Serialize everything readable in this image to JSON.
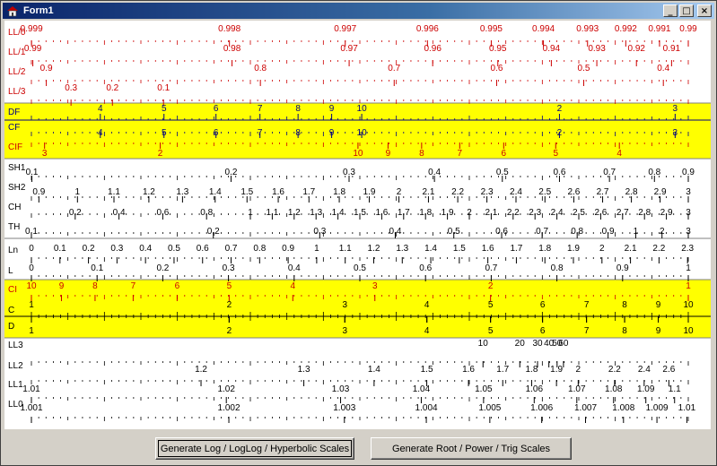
{
  "window": {
    "title": "Form1",
    "icon": "app-icon"
  },
  "titlebar_buttons": [
    {
      "name": "minimize-button",
      "glyph": "_"
    },
    {
      "name": "maximize-button",
      "glyph": "□"
    },
    {
      "name": "close-button",
      "glyph": "×"
    }
  ],
  "buttons": {
    "log_label": "Generate Log / LogLog / Hyperbolic Scales",
    "root_label": "Generate Root / Power / Trig Scales"
  },
  "colors": {
    "highlight": "#ffff00",
    "red_scale": "#cc0000",
    "navy_scale": "#000080",
    "black_scale": "#000000"
  },
  "scales": [
    {
      "name": "LL/0",
      "color": "red",
      "band": "top",
      "labels": [
        "0.999",
        "0.998",
        "0.997",
        "0.996",
        "0.995",
        "0.994",
        "0.993",
        "0.992",
        "0.991",
        "0.99"
      ]
    },
    {
      "name": "LL/1",
      "color": "red",
      "band": "top",
      "labels": [
        "0.99",
        "0.98",
        "0.97",
        "0.96",
        "0.95",
        "0.94",
        "0.93",
        "0.92",
        "0.91"
      ]
    },
    {
      "name": "LL/2",
      "color": "red",
      "band": "top",
      "labels": [
        "0.9",
        "0.8",
        "0.7",
        "0.6",
        "0.5",
        "0.4"
      ]
    },
    {
      "name": "LL/3",
      "color": "red",
      "band": "top",
      "labels": [
        "0.3",
        "0.2",
        "0.1"
      ]
    },
    {
      "name": "DF",
      "color": "navy",
      "band": "yellow",
      "labels": [
        "4",
        "5",
        "6",
        "7",
        "8",
        "9",
        "10",
        "2",
        "3"
      ]
    },
    {
      "name": "CF",
      "color": "navy",
      "band": "yellow",
      "labels": [
        "4",
        "5",
        "6",
        "7",
        "8",
        "9",
        "10",
        "2",
        "3"
      ]
    },
    {
      "name": "CIF",
      "color": "red",
      "band": "yellow",
      "labels": [
        "3",
        "2",
        "10",
        "9",
        "8",
        "7",
        "6",
        "5",
        "4"
      ]
    },
    {
      "name": "SH1",
      "color": "black",
      "band": "white",
      "labels": [
        "0.1",
        "0.2",
        "0.3",
        "0.4",
        "0.5",
        "0.6",
        "0.7",
        "0.8",
        "0.9"
      ]
    },
    {
      "name": "SH2",
      "color": "black",
      "band": "white",
      "labels": [
        "0.9",
        "1",
        "1.1",
        "1.2",
        "1.3",
        "1.4",
        "1.5",
        "1.6",
        "1.7",
        "1.8",
        "1.9",
        "2",
        "2.1",
        "2.2",
        "2.3",
        "2.4",
        "2.5",
        "2.6",
        "2.7",
        "2.8",
        "2.9",
        "3"
      ]
    },
    {
      "name": "CH",
      "color": "black",
      "band": "white",
      "labels": [
        "0.2",
        "0.4",
        "0.6",
        "0.8",
        "1",
        "1.1",
        "1.2",
        "1.3",
        "1.4",
        "1.5",
        "1.6",
        "1.7",
        "1.8",
        "1.9",
        "2",
        "2.1",
        "2.2",
        "2.3",
        "2.4",
        "2.5",
        "2.6",
        "2.7",
        "2.8",
        "2.9",
        "3"
      ]
    },
    {
      "name": "TH",
      "color": "black",
      "band": "white",
      "labels": [
        "0.1",
        "0.2",
        "0.3",
        "0.4",
        "0.5",
        "0.6",
        "0.7",
        "0.8",
        "0.9",
        "1",
        "2",
        "3"
      ]
    },
    {
      "name": "Ln",
      "color": "black",
      "band": "white",
      "labels": [
        "0",
        "0.1",
        "0.2",
        "0.3",
        "0.4",
        "0.5",
        "0.6",
        "0.7",
        "0.8",
        "0.9",
        "1",
        "1.1",
        "1.2",
        "1.3",
        "1.4",
        "1.5",
        "1.6",
        "1.7",
        "1.8",
        "1.9",
        "2",
        "2.1",
        "2.2",
        "2.3"
      ]
    },
    {
      "name": "L",
      "color": "black",
      "band": "white",
      "labels": [
        "0",
        "0.1",
        "0.2",
        "0.3",
        "0.4",
        "0.5",
        "0.6",
        "0.7",
        "0.8",
        "0.9",
        "1"
      ]
    },
    {
      "name": "CI",
      "color": "red",
      "band": "yellow",
      "labels": [
        "10",
        "9",
        "8",
        "7",
        "6",
        "5",
        "4",
        "3",
        "2",
        "1"
      ]
    },
    {
      "name": "C",
      "color": "black",
      "band": "yellow",
      "labels": [
        "1",
        "2",
        "3",
        "4",
        "5",
        "6",
        "7",
        "8",
        "9",
        "10"
      ]
    },
    {
      "name": "D",
      "color": "black",
      "band": "yellow",
      "labels": [
        "1",
        "2",
        "3",
        "4",
        "5",
        "6",
        "7",
        "8",
        "9",
        "10"
      ]
    },
    {
      "name": "LL3",
      "color": "black",
      "band": "bottom",
      "labels": [
        "10",
        "20",
        "30",
        "40",
        "50",
        "60"
      ]
    },
    {
      "name": "LL2",
      "color": "black",
      "band": "bottom",
      "labels": [
        "1.2",
        "1.3",
        "1.4",
        "1.5",
        "1.6",
        "1.7",
        "1.8",
        "1.9",
        "2",
        "2.2",
        "2.4",
        "2.6"
      ]
    },
    {
      "name": "LL1",
      "color": "black",
      "band": "bottom",
      "labels": [
        "1.01",
        "1.02",
        "1.03",
        "1.04",
        "1.05",
        "1.06",
        "1.07",
        "1.08",
        "1.09",
        "1.1"
      ]
    },
    {
      "name": "LL0",
      "color": "black",
      "band": "bottom",
      "labels": [
        "1.001",
        "1.002",
        "1.003",
        "1.004",
        "1.005",
        "1.006",
        "1.007",
        "1.008",
        "1.009",
        "1.01"
      ]
    }
  ]
}
